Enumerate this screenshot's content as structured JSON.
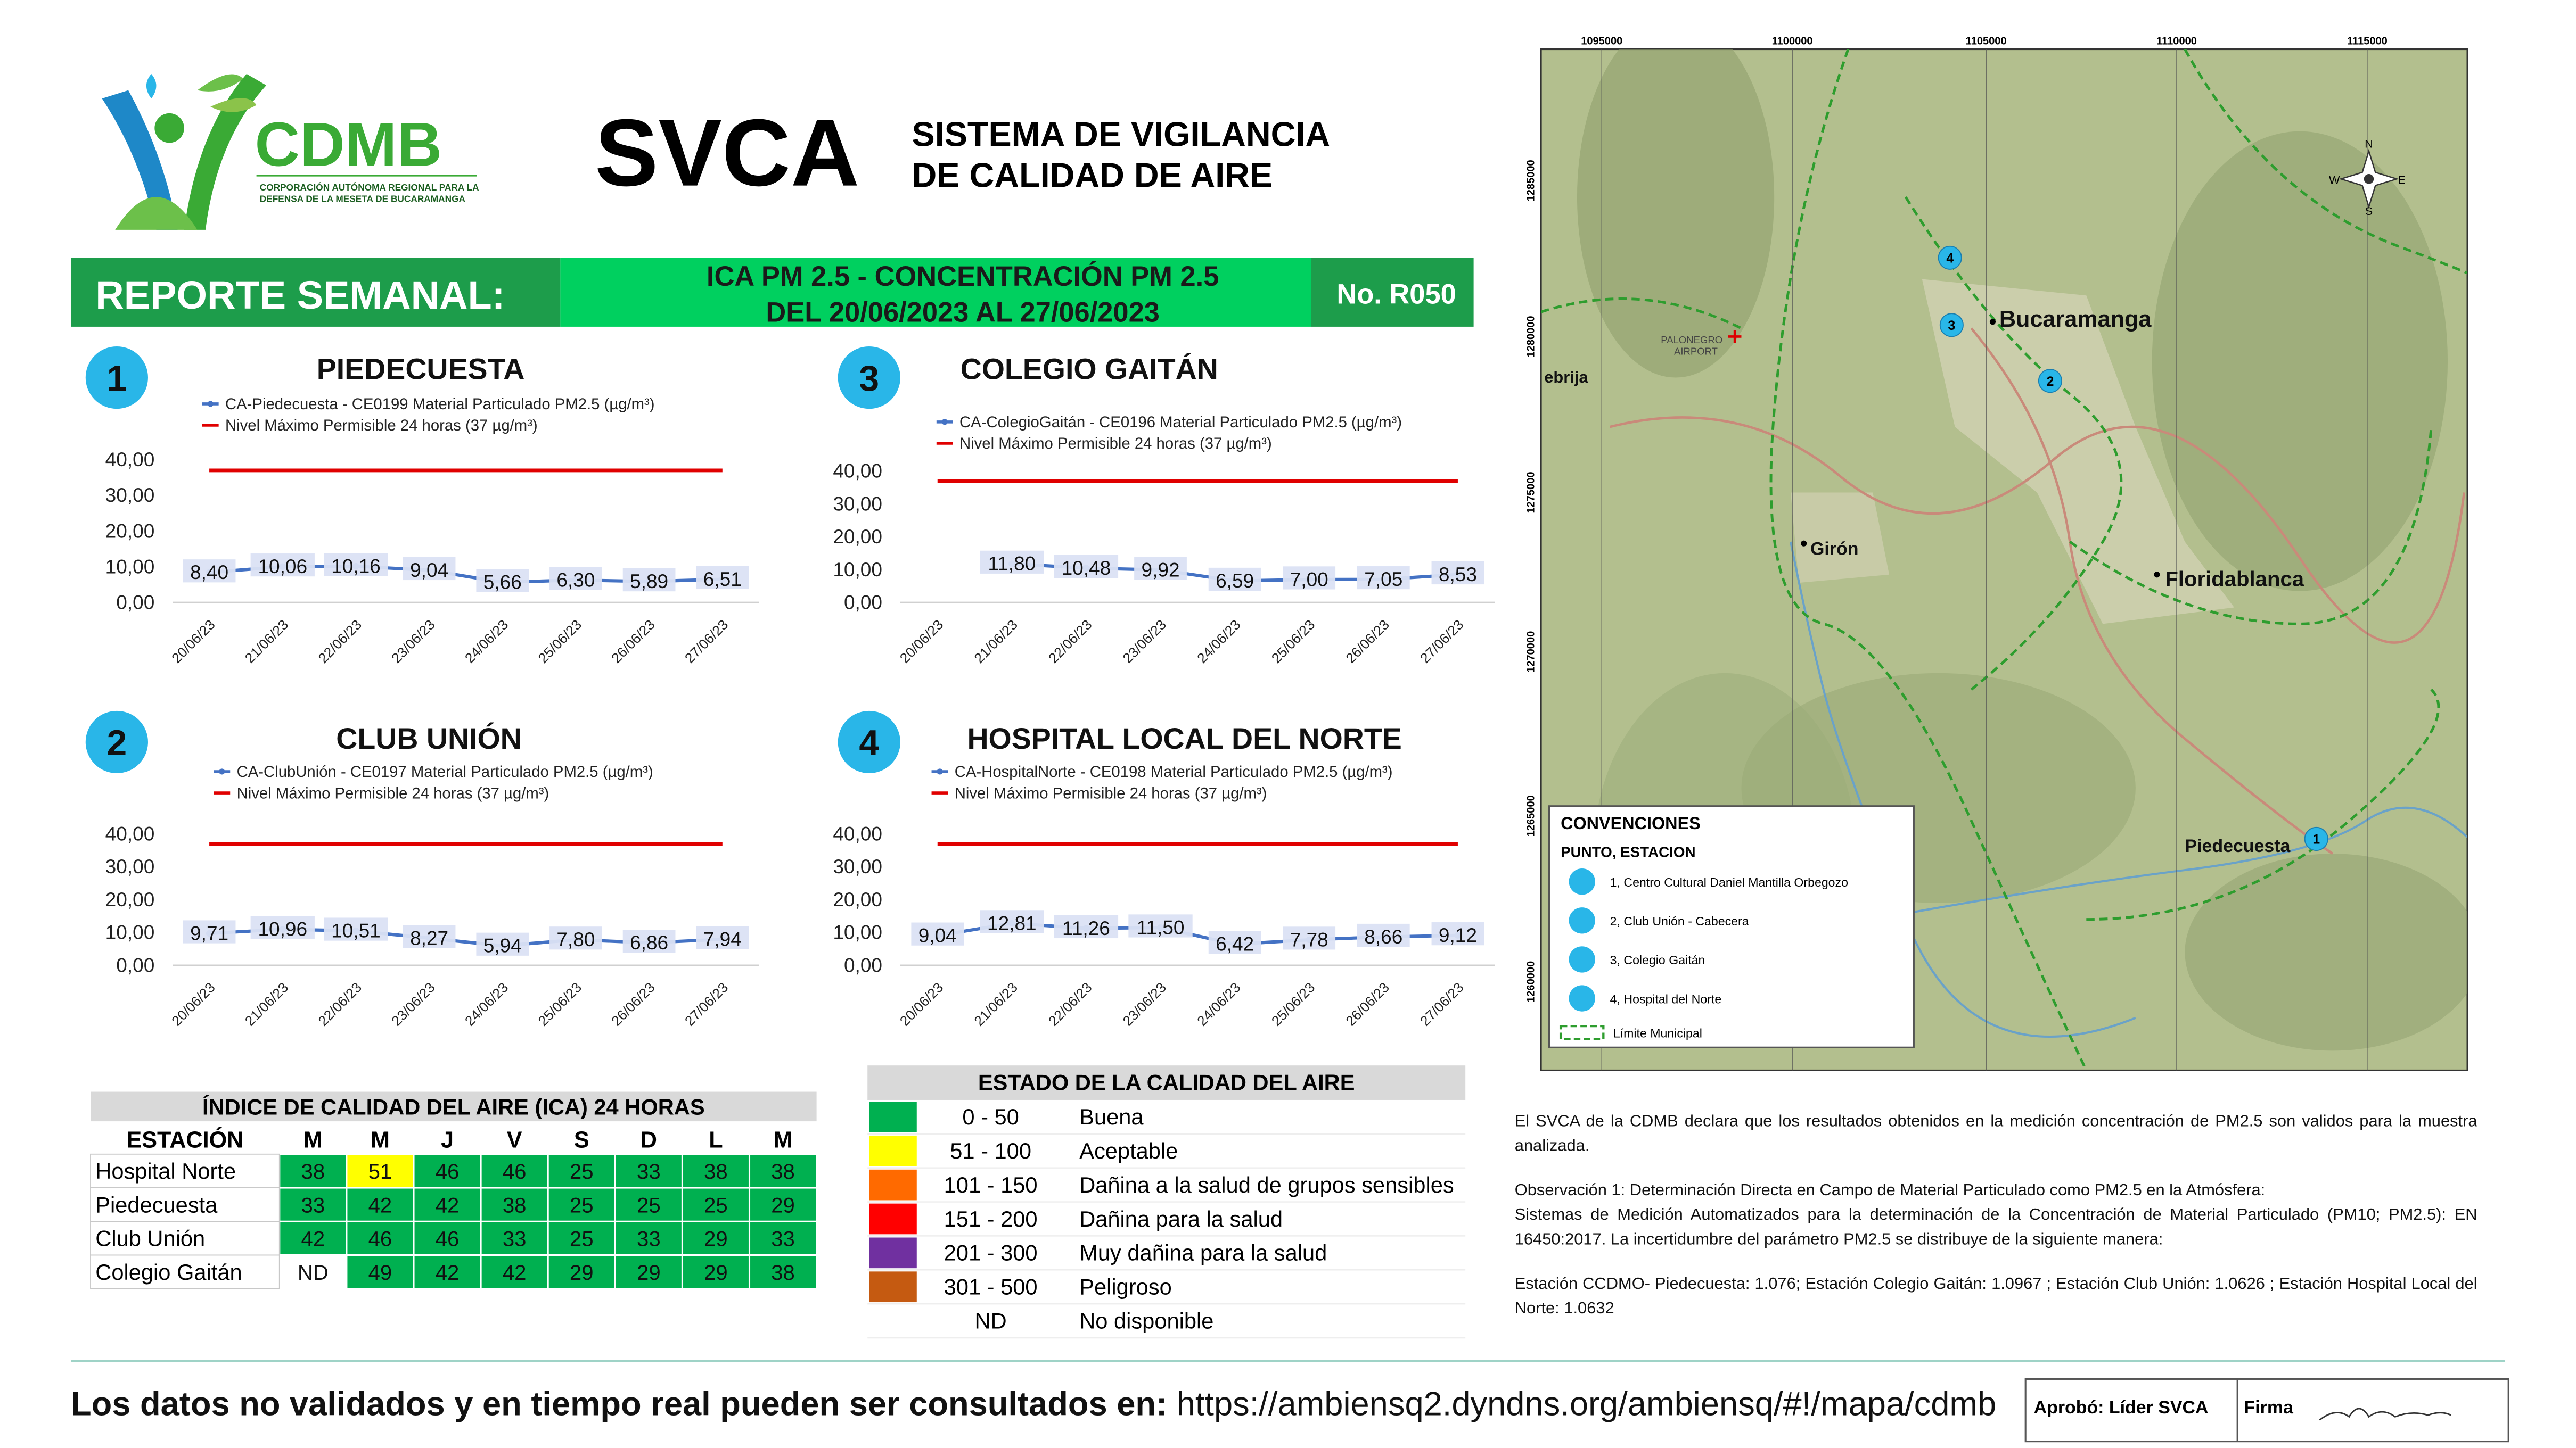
{
  "header": {
    "logo_name": "CDMB",
    "logo_subtitle": [
      "CORPORACIÓN AUTÓNOMA REGIONAL PARA LA",
      "DEFENSA DE LA MESETA DE BUCARAMANGA"
    ],
    "acronym": "SVCA",
    "title": [
      "SISTEMA DE VIGILANCIA",
      "DE CALIDAD DE AIRE"
    ]
  },
  "banner": {
    "label": "REPORTE SEMANAL:",
    "subject": "ICA PM 2.5 - CONCENTRACIÓN PM 2.5",
    "period": "DEL 20/06/2023 AL 27/06/2023",
    "number": "No. R050"
  },
  "chart_data": [
    {
      "type": "line",
      "badge": "1",
      "title": "PIEDECUESTA",
      "categories": [
        "20/06/23",
        "21/06/23",
        "22/06/23",
        "23/06/23",
        "24/06/23",
        "25/06/23",
        "26/06/23",
        "27/06/23"
      ],
      "series": [
        {
          "name": "CA-Piedecuesta - CE0199 Material Particulado PM2.5 (µg/m³)",
          "color": "#4472c4",
          "values": [
            8.4,
            10.06,
            10.16,
            9.04,
            5.66,
            6.3,
            5.89,
            6.51
          ],
          "value_labels": [
            "8,40",
            "10,06",
            "10,16",
            "9,04",
            "5,66",
            "6,30",
            "5,89",
            "6,51"
          ]
        },
        {
          "name": "Nivel Máximo Permisible 24 horas (37 µg/m³)",
          "color": "#e00000",
          "values": [
            37,
            37,
            37,
            37,
            37,
            37,
            37,
            37
          ]
        }
      ],
      "ylim": [
        0,
        40
      ],
      "yticks": [
        {
          "value": 0,
          "label": "0,00"
        },
        {
          "value": 10,
          "label": "10,00"
        },
        {
          "value": 20,
          "label": "20,00"
        },
        {
          "value": 30,
          "label": "30,00"
        },
        {
          "value": 40,
          "label": "40,00"
        }
      ]
    },
    {
      "type": "line",
      "badge": "2",
      "title": "CLUB UNIÓN",
      "categories": [
        "20/06/23",
        "21/06/23",
        "22/06/23",
        "23/06/23",
        "24/06/23",
        "25/06/23",
        "26/06/23",
        "27/06/23"
      ],
      "series": [
        {
          "name": "CA-ClubUnión - CE0197 Material Particulado PM2.5 (µg/m³)",
          "color": "#4472c4",
          "values": [
            9.71,
            10.96,
            10.51,
            8.27,
            5.94,
            7.8,
            6.86,
            7.94
          ],
          "value_labels": [
            "9,71",
            "10,96",
            "10,51",
            "8,27",
            "5,94",
            "7,80",
            "6,86",
            "7,94"
          ]
        },
        {
          "name": "Nivel Máximo Permisible 24 horas (37 µg/m³)",
          "color": "#e00000",
          "values": [
            37,
            37,
            37,
            37,
            37,
            37,
            37,
            37
          ]
        }
      ],
      "ylim": [
        0,
        40
      ],
      "yticks": [
        {
          "value": 0,
          "label": "0,00"
        },
        {
          "value": 10,
          "label": "10,00"
        },
        {
          "value": 20,
          "label": "20,00"
        },
        {
          "value": 30,
          "label": "30,00"
        },
        {
          "value": 40,
          "label": "40,00"
        }
      ]
    },
    {
      "type": "line",
      "badge": "3",
      "title": "COLEGIO GAITÁN",
      "categories": [
        "20/06/23",
        "21/06/23",
        "22/06/23",
        "23/06/23",
        "24/06/23",
        "25/06/23",
        "26/06/23",
        "27/06/23"
      ],
      "series": [
        {
          "name": "CA-ColegioGaitán - CE0196 Material Particulado PM2.5 (µg/m³)",
          "color": "#4472c4",
          "values": [
            null,
            11.8,
            10.48,
            9.92,
            6.59,
            7.0,
            7.05,
            8.53
          ],
          "value_labels": [
            null,
            "11,80",
            "10,48",
            "9,92",
            "6,59",
            "7,00",
            "7,05",
            "8,53"
          ]
        },
        {
          "name": "Nivel Máximo Permisible 24 horas (37 µg/m³)",
          "color": "#e00000",
          "values": [
            37,
            37,
            37,
            37,
            37,
            37,
            37,
            37
          ]
        }
      ],
      "ylim": [
        0,
        40
      ],
      "yticks": [
        {
          "value": 0,
          "label": "0,00"
        },
        {
          "value": 10,
          "label": "10,00"
        },
        {
          "value": 20,
          "label": "20,00"
        },
        {
          "value": 30,
          "label": "30,00"
        },
        {
          "value": 40,
          "label": "40,00"
        }
      ]
    },
    {
      "type": "line",
      "badge": "4",
      "title": "HOSPITAL LOCAL DEL NORTE",
      "categories": [
        "20/06/23",
        "21/06/23",
        "22/06/23",
        "23/06/23",
        "24/06/23",
        "25/06/23",
        "26/06/23",
        "27/06/23"
      ],
      "series": [
        {
          "name": "CA-HospitalNorte - CE0198 Material Particulado PM2.5 (µg/m³)",
          "color": "#4472c4",
          "values": [
            9.04,
            12.81,
            11.26,
            11.5,
            6.42,
            7.78,
            8.66,
            9.12
          ],
          "value_labels": [
            "9,04",
            "12,81",
            "11,26",
            "11,50",
            "6,42",
            "7,78",
            "8,66",
            "9,12"
          ]
        },
        {
          "name": "Nivel Máximo Permisible 24 horas (37 µg/m³)",
          "color": "#e00000",
          "values": [
            37,
            37,
            37,
            37,
            37,
            37,
            37,
            37
          ]
        }
      ],
      "ylim": [
        0,
        40
      ],
      "yticks": [
        {
          "value": 0,
          "label": "0,00"
        },
        {
          "value": 10,
          "label": "10,00"
        },
        {
          "value": 20,
          "label": "20,00"
        },
        {
          "value": 30,
          "label": "30,00"
        },
        {
          "value": 40,
          "label": "40,00"
        }
      ]
    }
  ],
  "ica_table": {
    "title": "ÍNDICE DE CALIDAD DEL AIRE (ICA) 24 HORAS",
    "columns": [
      "ESTACIÓN",
      "M",
      "M",
      "J",
      "V",
      "S",
      "D",
      "L",
      "M"
    ],
    "rows": [
      [
        "Hospital Norte",
        38,
        51,
        46,
        46,
        25,
        33,
        38,
        38
      ],
      [
        "Piedecuesta",
        33,
        42,
        42,
        38,
        25,
        25,
        25,
        29
      ],
      [
        "Club Unión",
        42,
        46,
        46,
        33,
        25,
        33,
        29,
        33
      ],
      [
        "Colegio Gaitán",
        "ND",
        49,
        42,
        42,
        29,
        29,
        29,
        38
      ]
    ]
  },
  "quality_table": {
    "title": "ESTADO DE LA CALIDAD DEL AIRE",
    "rows": [
      {
        "range": "0 - 50",
        "label": "Buena",
        "color": "#00b050"
      },
      {
        "range": "51 - 100",
        "label": "Aceptable",
        "color": "#ffff00"
      },
      {
        "range": "101 - 150",
        "label": "Dañina a la salud de grupos sensibles",
        "color": "#ff6a00"
      },
      {
        "range": "151 - 200",
        "label": "Dañina para la salud",
        "color": "#ff0000"
      },
      {
        "range": "201 - 300",
        "label": "Muy dañina para la salud",
        "color": "#7030a0"
      },
      {
        "range": "301 - 500",
        "label": "Peligroso",
        "color": "#c55a11"
      },
      {
        "range": "ND",
        "label": "No disponible"
      }
    ]
  },
  "map": {
    "xticks": [
      1095000,
      1100000,
      1105000,
      1110000,
      1115000
    ],
    "yticks": [
      1285000,
      1280000,
      1275000,
      1270000,
      1265000,
      1260000
    ],
    "compass": [
      "N",
      "E",
      "S",
      "W"
    ],
    "places": [
      "Bucaramanga",
      "Floridablanca",
      "Girón",
      "Piedecuesta",
      "ebrija",
      "PALONEGRO",
      "AIRPORT"
    ],
    "stations": [
      "1",
      "2",
      "3",
      "4"
    ],
    "legend_title": "CONVENCIONES",
    "legend_subtitle": "PUNTO, ESTACION",
    "legend_items": [
      "1, Centro Cultural Daniel Mantilla Orbegozo",
      "2, Club Unión - Cabecera",
      "3, Colegio Gaitán",
      "4, Hospital del Norte"
    ],
    "boundary": "Límite Municipal"
  },
  "notes": [
    "El SVCA de la CDMB declara que los resultados obtenidos en la medición concentración de PM2.5 son validos para la muestra analizada.",
    "Observación 1: Determinación Directa en Campo de Material Particulado como PM2.5 en la Atmósfera:",
    "Sistemas de Medición Automatizados para la determinación de la Concentración de Material Particulado (PM10; PM2.5): EN 16450:2017. La incertidumbre del parámetro PM2.5 se distribuye de la siguiente manera:",
    "Estación CCDMO- Piedecuesta: 1.076; Estación Colegio Gaitán: 1.0967 ; Estación Club Unión: 1.0626 ; Estación Hospital Local del Norte: 1.0632"
  ],
  "footer": {
    "text": "Los datos no validados y en tiempo real pueden ser consultados en:",
    "url": "https://ambiensq2.dyndns.org/ambiensq/#!/mapa/cdmb",
    "approved": "Aprobó: Líder SVCA",
    "signature": "Firma"
  }
}
